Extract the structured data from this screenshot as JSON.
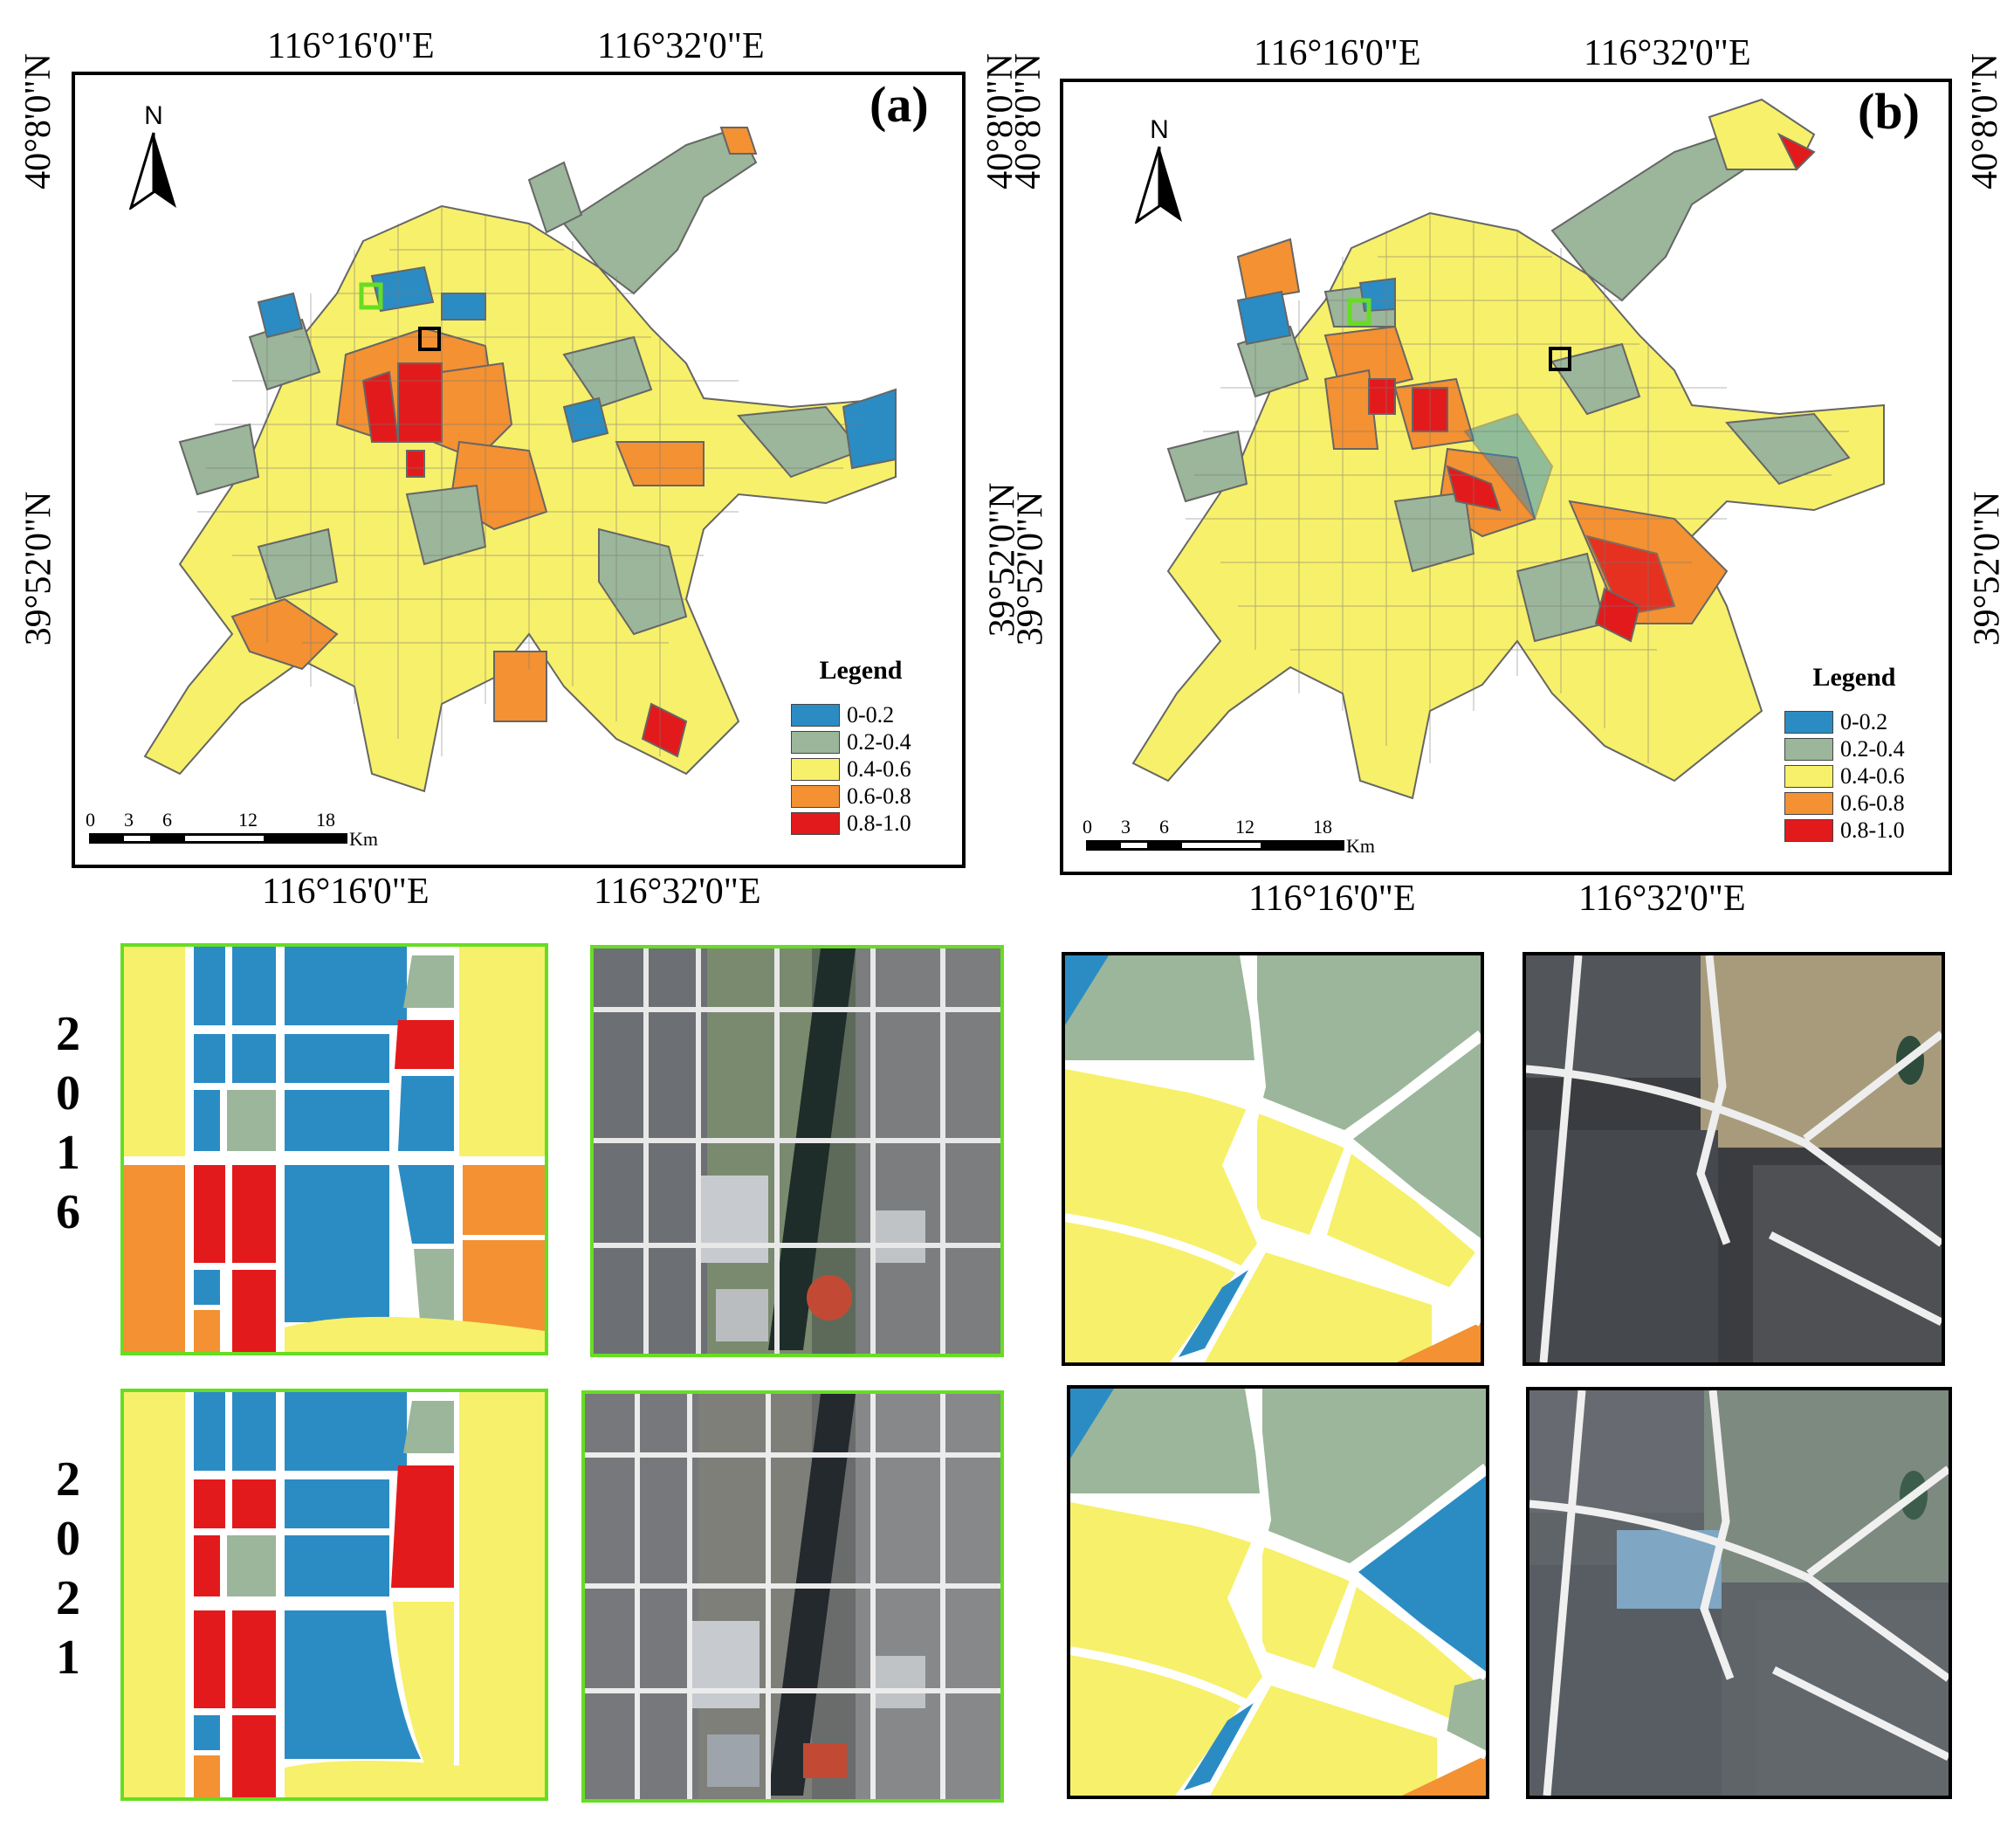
{
  "panels": [
    {
      "label": "(a)",
      "top_lon": [
        "116°16'0\"E",
        "116°32'0\"E"
      ],
      "bottom_lon": [
        "116°16'0\"E",
        "116°32'0\"E"
      ],
      "left_lat": [
        "40°8'0\"N",
        "39°52'0\"N"
      ],
      "right_lat": [
        "40°8'0\"N",
        "39°52'0\"N"
      ]
    },
    {
      "label": "(b)",
      "top_lon": [
        "116°16'0\"E",
        "116°32'0\"E"
      ],
      "bottom_lon": [
        "116°16'0\"E",
        "116°32'0\"E"
      ],
      "left_lat": [
        "40°8'0\"N",
        "39°52'0\"N"
      ],
      "right_lat": [
        "40°8'0\"N",
        "39°52'0\"N"
      ]
    }
  ],
  "north_arrow": "N",
  "legend": {
    "title": "Legend",
    "classes": [
      {
        "label": "0-0.2",
        "color": "#2b8cc4"
      },
      {
        "label": "0.2-0.4",
        "color": "#9bb69a"
      },
      {
        "label": "0.4-0.6",
        "color": "#f7f06a"
      },
      {
        "label": "0.6-0.8",
        "color": "#f39133"
      },
      {
        "label": "0.8-1.0",
        "color": "#e31a1c"
      }
    ]
  },
  "scale_bar": {
    "ticks": [
      "0",
      "3",
      "6",
      "12",
      "18"
    ],
    "unit": "Km"
  },
  "years": [
    {
      "digits": [
        "2",
        "0",
        "1",
        "6"
      ]
    },
    {
      "digits": [
        "2",
        "0",
        "2",
        "1"
      ]
    }
  ],
  "inset_colors": {
    "green_frame": "#66dd22",
    "black_frame": "#000000"
  }
}
